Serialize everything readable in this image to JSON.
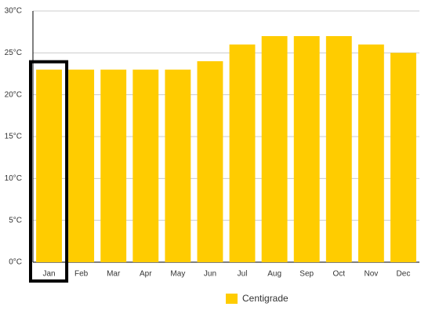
{
  "chart_data": {
    "type": "bar",
    "categories": [
      "Jan",
      "Feb",
      "Mar",
      "Apr",
      "May",
      "Jun",
      "Jul",
      "Aug",
      "Sep",
      "Oct",
      "Nov",
      "Dec"
    ],
    "series": [
      {
        "name": "Centigrade",
        "color": "#ffcc00",
        "values": [
          23,
          23,
          23,
          23,
          23,
          24,
          26,
          27,
          27,
          27,
          26,
          25
        ]
      }
    ],
    "ylim": [
      0,
      30
    ],
    "yticks": [
      {
        "value": 0,
        "label": "0°C"
      },
      {
        "value": 5,
        "label": "5°C"
      },
      {
        "value": 10,
        "label": "10°C"
      },
      {
        "value": 15,
        "label": "15°C"
      },
      {
        "value": 20,
        "label": "20°C"
      },
      {
        "value": 25,
        "label": "25°C"
      },
      {
        "value": 30,
        "label": "30°C"
      }
    ],
    "grid": true,
    "legend": "bottom"
  }
}
